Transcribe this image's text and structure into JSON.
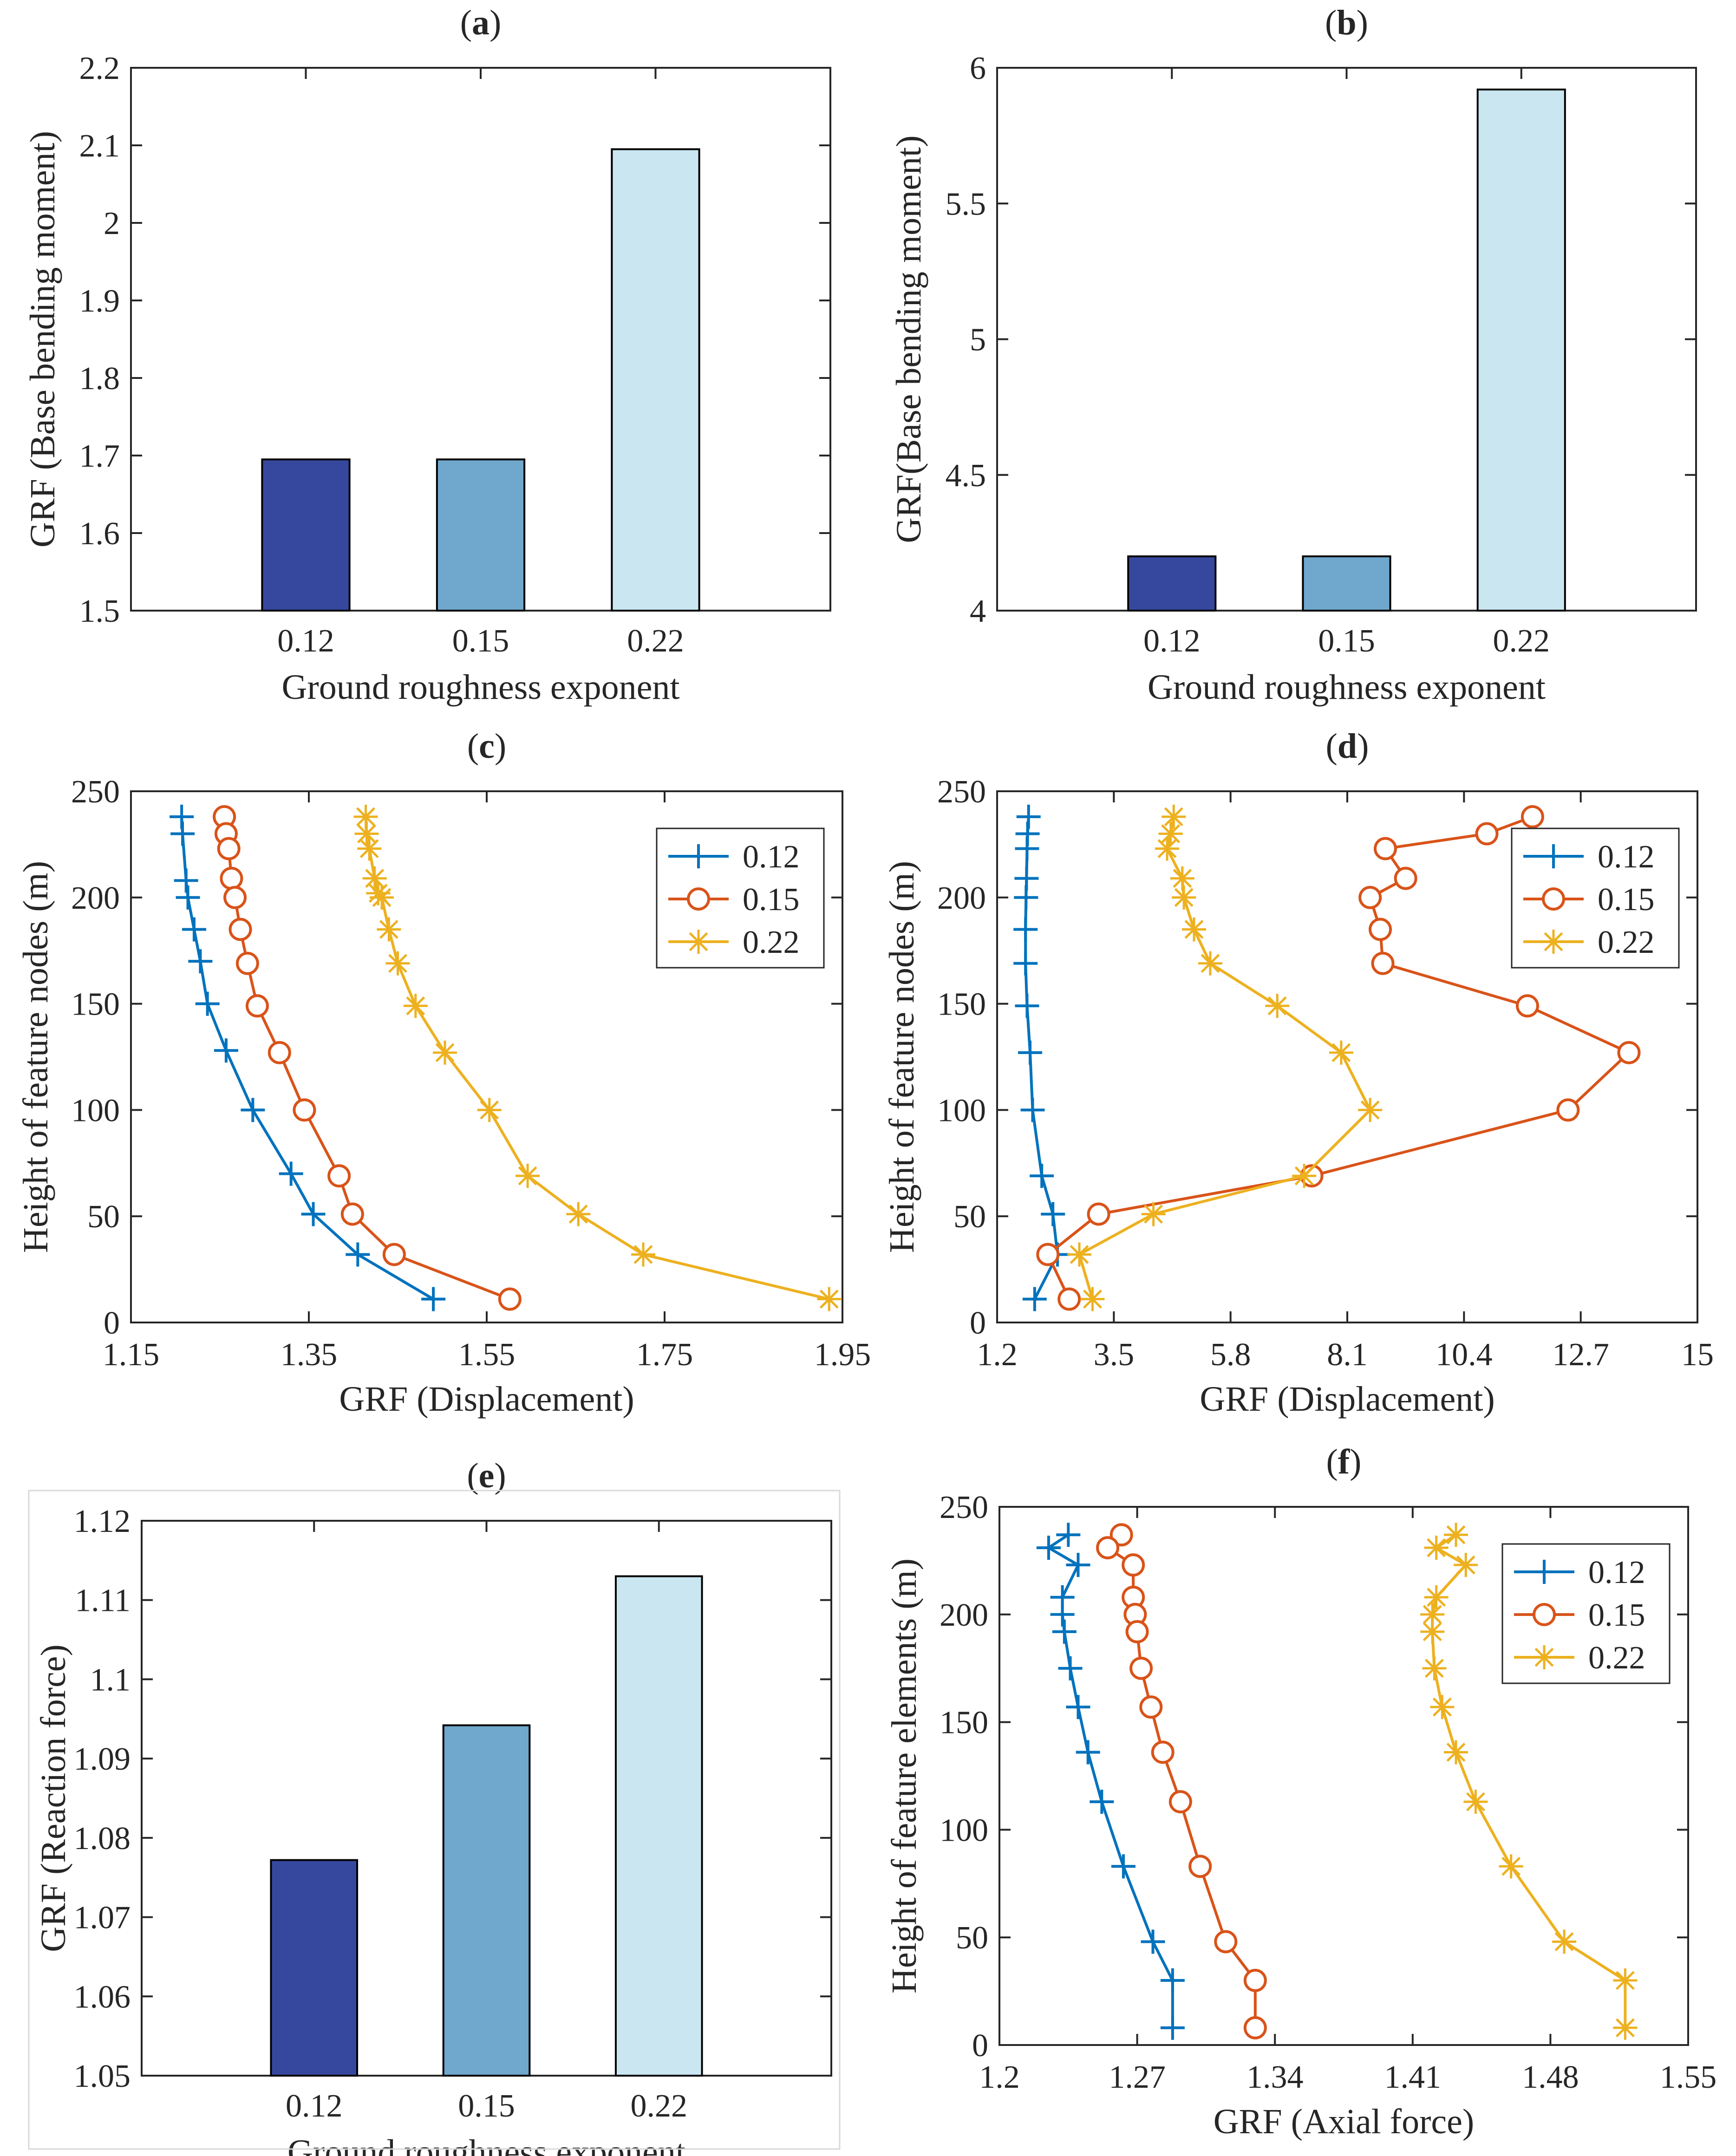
{
  "chart_data": [
    {
      "id": "a",
      "panel_label": "(a)",
      "type": "bar",
      "categories": [
        "0.12",
        "0.15",
        "0.22"
      ],
      "values": [
        1.695,
        1.695,
        2.095
      ],
      "xlabel": "Ground roughness exponent",
      "ylabel": "GRF (Base bending moment)",
      "ylim": [
        1.5,
        2.2
      ],
      "yticks": [
        1.5,
        1.6,
        1.7,
        1.8,
        1.9,
        2.0,
        2.1,
        2.2
      ],
      "ytick_labels": [
        "1.5",
        "1.6",
        "1.7",
        "1.8",
        "1.9",
        "2",
        "2.1",
        "2.2"
      ],
      "bar_colors": [
        "#36489E",
        "#6FA7CD",
        "#C9E6F1"
      ]
    },
    {
      "id": "b",
      "panel_label": "(b)",
      "type": "bar",
      "categories": [
        "0.12",
        "0.15",
        "0.22"
      ],
      "values": [
        4.2,
        4.2,
        5.92
      ],
      "xlabel": "Ground roughness exponent",
      "ylabel": "GRF(Base bending moment)",
      "ylim": [
        4,
        6
      ],
      "yticks": [
        4,
        4.5,
        5,
        5.5,
        6
      ],
      "ytick_labels": [
        "4",
        "4.5",
        "5",
        "5.5",
        "6"
      ],
      "bar_colors": [
        "#36489E",
        "#6FA7CD",
        "#C9E6F1"
      ]
    },
    {
      "id": "c",
      "panel_label": "(c)",
      "type": "line",
      "xlabel": "GRF (Displacement)",
      "ylabel": "Height of feature nodes (m)",
      "xlim": [
        1.15,
        1.95
      ],
      "ylim": [
        0,
        250
      ],
      "xticks": [
        1.15,
        1.35,
        1.55,
        1.75,
        1.95
      ],
      "xtick_labels": [
        "1.15",
        "1.35",
        "1.55",
        "1.75",
        "1.95"
      ],
      "yticks": [
        0,
        50,
        100,
        150,
        200,
        250
      ],
      "ytick_labels": [
        "0",
        "50",
        "100",
        "150",
        "200",
        "250"
      ],
      "legend_position": "top-right",
      "series": [
        {
          "name": "0.12",
          "marker": "plus",
          "color": "#0072BD",
          "x": [
            1.207,
            1.208,
            1.212,
            1.214,
            1.221,
            1.228,
            1.236,
            1.257,
            1.287,
            1.33,
            1.355,
            1.405,
            1.49
          ],
          "y": [
            238,
            230,
            208,
            200,
            185,
            170,
            150,
            128,
            100,
            70,
            51,
            32,
            11
          ]
        },
        {
          "name": "0.15",
          "marker": "circle",
          "color": "#D95319",
          "x": [
            1.255,
            1.257,
            1.26,
            1.263,
            1.267,
            1.273,
            1.281,
            1.292,
            1.317,
            1.345,
            1.384,
            1.399,
            1.446,
            1.576
          ],
          "y": [
            238,
            230,
            223,
            209,
            200,
            185,
            169,
            149,
            127,
            100,
            69,
            51,
            32,
            11
          ]
        },
        {
          "name": "0.22",
          "marker": "star",
          "color": "#EDB120",
          "x": [
            1.414,
            1.415,
            1.418,
            1.424,
            1.428,
            1.432,
            1.44,
            1.45,
            1.47,
            1.503,
            1.553,
            1.596,
            1.653,
            1.726,
            1.935
          ],
          "y": [
            238,
            230,
            223,
            209,
            202,
            200,
            185,
            169,
            149,
            127,
            100,
            69,
            51,
            32,
            11
          ]
        }
      ]
    },
    {
      "id": "d",
      "panel_label": "(d)",
      "type": "line",
      "xlabel": "GRF (Displacement)",
      "ylabel": "Height of feature nodes (m)",
      "xlim": [
        1.2,
        15
      ],
      "ylim": [
        0,
        250
      ],
      "xticks": [
        1.2,
        3.5,
        5.8,
        8.1,
        10.4,
        12.7,
        15
      ],
      "xtick_labels": [
        "1.2",
        "3.5",
        "5.8",
        "8.1",
        "10.4",
        "12.7",
        "15"
      ],
      "yticks": [
        0,
        50,
        100,
        150,
        200,
        250
      ],
      "ytick_labels": [
        "0",
        "50",
        "100",
        "150",
        "200",
        "250"
      ],
      "legend_position": "top-right",
      "series": [
        {
          "name": "0.12",
          "marker": "plus",
          "color": "#0072BD",
          "x": [
            1.82,
            1.8,
            1.79,
            1.78,
            1.77,
            1.76,
            1.76,
            1.79,
            1.85,
            1.9,
            2.08,
            2.3,
            2.39,
            1.94
          ],
          "y": [
            238,
            230,
            223,
            209,
            200,
            185,
            169,
            149,
            127,
            100,
            69,
            51,
            32,
            11
          ]
        },
        {
          "name": "0.15",
          "marker": "circle",
          "color": "#D95319",
          "x": [
            11.75,
            10.85,
            8.85,
            9.25,
            8.55,
            8.75,
            8.8,
            11.65,
            13.65,
            12.45,
            7.4,
            3.2,
            2.2,
            2.62
          ],
          "y": [
            238,
            230,
            223,
            209,
            200,
            185,
            169,
            149,
            127,
            100,
            69,
            51,
            32,
            11
          ]
        },
        {
          "name": "0.22",
          "marker": "star",
          "color": "#EDB120",
          "x": [
            4.68,
            4.62,
            4.55,
            4.85,
            4.88,
            5.08,
            5.4,
            6.72,
            7.98,
            8.55,
            7.25,
            4.28,
            2.82,
            3.08
          ],
          "y": [
            238,
            230,
            223,
            209,
            200,
            185,
            169,
            149,
            127,
            100,
            69,
            51,
            32,
            11
          ]
        }
      ]
    },
    {
      "id": "e",
      "panel_label": "(e)",
      "type": "bar",
      "categories": [
        "0.12",
        "0.15",
        "0.22"
      ],
      "values": [
        1.0772,
        1.0942,
        1.113
      ],
      "xlabel": "Ground roughness exponent",
      "ylabel": "GRF (Reaction force)",
      "ylim": [
        1.05,
        1.12
      ],
      "yticks": [
        1.05,
        1.06,
        1.07,
        1.08,
        1.09,
        1.1,
        1.11,
        1.12
      ],
      "ytick_labels": [
        "1.05",
        "1.06",
        "1.07",
        "1.08",
        "1.09",
        "1.1",
        "1.11",
        "1.12"
      ],
      "bar_colors": [
        "#36489E",
        "#6FA7CD",
        "#C9E6F1"
      ]
    },
    {
      "id": "f",
      "panel_label": "(f)",
      "type": "line",
      "xlabel": "GRF (Axial force)",
      "ylabel": "Height of feature elements (m)",
      "xlim": [
        1.2,
        1.55
      ],
      "ylim": [
        0,
        250
      ],
      "xticks": [
        1.2,
        1.27,
        1.34,
        1.41,
        1.48,
        1.55
      ],
      "xtick_labels": [
        "1.2",
        "1.27",
        "1.34",
        "1.41",
        "1.48",
        "1.55"
      ],
      "yticks": [
        0,
        50,
        100,
        150,
        200,
        250
      ],
      "ytick_labels": [
        "0",
        "50",
        "100",
        "150",
        "200",
        "250"
      ],
      "legend_position": "top-right",
      "series": [
        {
          "name": "0.12",
          "marker": "plus",
          "color": "#0072BD",
          "x": [
            1.235,
            1.225,
            1.24,
            1.232,
            1.232,
            1.233,
            1.236,
            1.24,
            1.245,
            1.252,
            1.263,
            1.278,
            1.288,
            1.288
          ],
          "y": [
            237,
            231,
            223,
            208,
            200,
            192,
            175,
            157,
            136,
            113,
            83,
            48,
            30,
            8
          ]
        },
        {
          "name": "0.15",
          "marker": "circle",
          "color": "#D95319",
          "x": [
            1.262,
            1.255,
            1.268,
            1.268,
            1.269,
            1.27,
            1.272,
            1.277,
            1.283,
            1.292,
            1.302,
            1.315,
            1.33,
            1.33
          ],
          "y": [
            237,
            231,
            223,
            208,
            200,
            192,
            175,
            157,
            136,
            113,
            83,
            48,
            30,
            8
          ]
        },
        {
          "name": "0.22",
          "marker": "star",
          "color": "#EDB120",
          "x": [
            1.432,
            1.422,
            1.437,
            1.422,
            1.42,
            1.42,
            1.421,
            1.425,
            1.432,
            1.442,
            1.46,
            1.487,
            1.518,
            1.518
          ],
          "y": [
            237,
            231,
            223,
            208,
            200,
            192,
            175,
            157,
            136,
            113,
            83,
            48,
            30,
            8
          ]
        }
      ]
    }
  ]
}
